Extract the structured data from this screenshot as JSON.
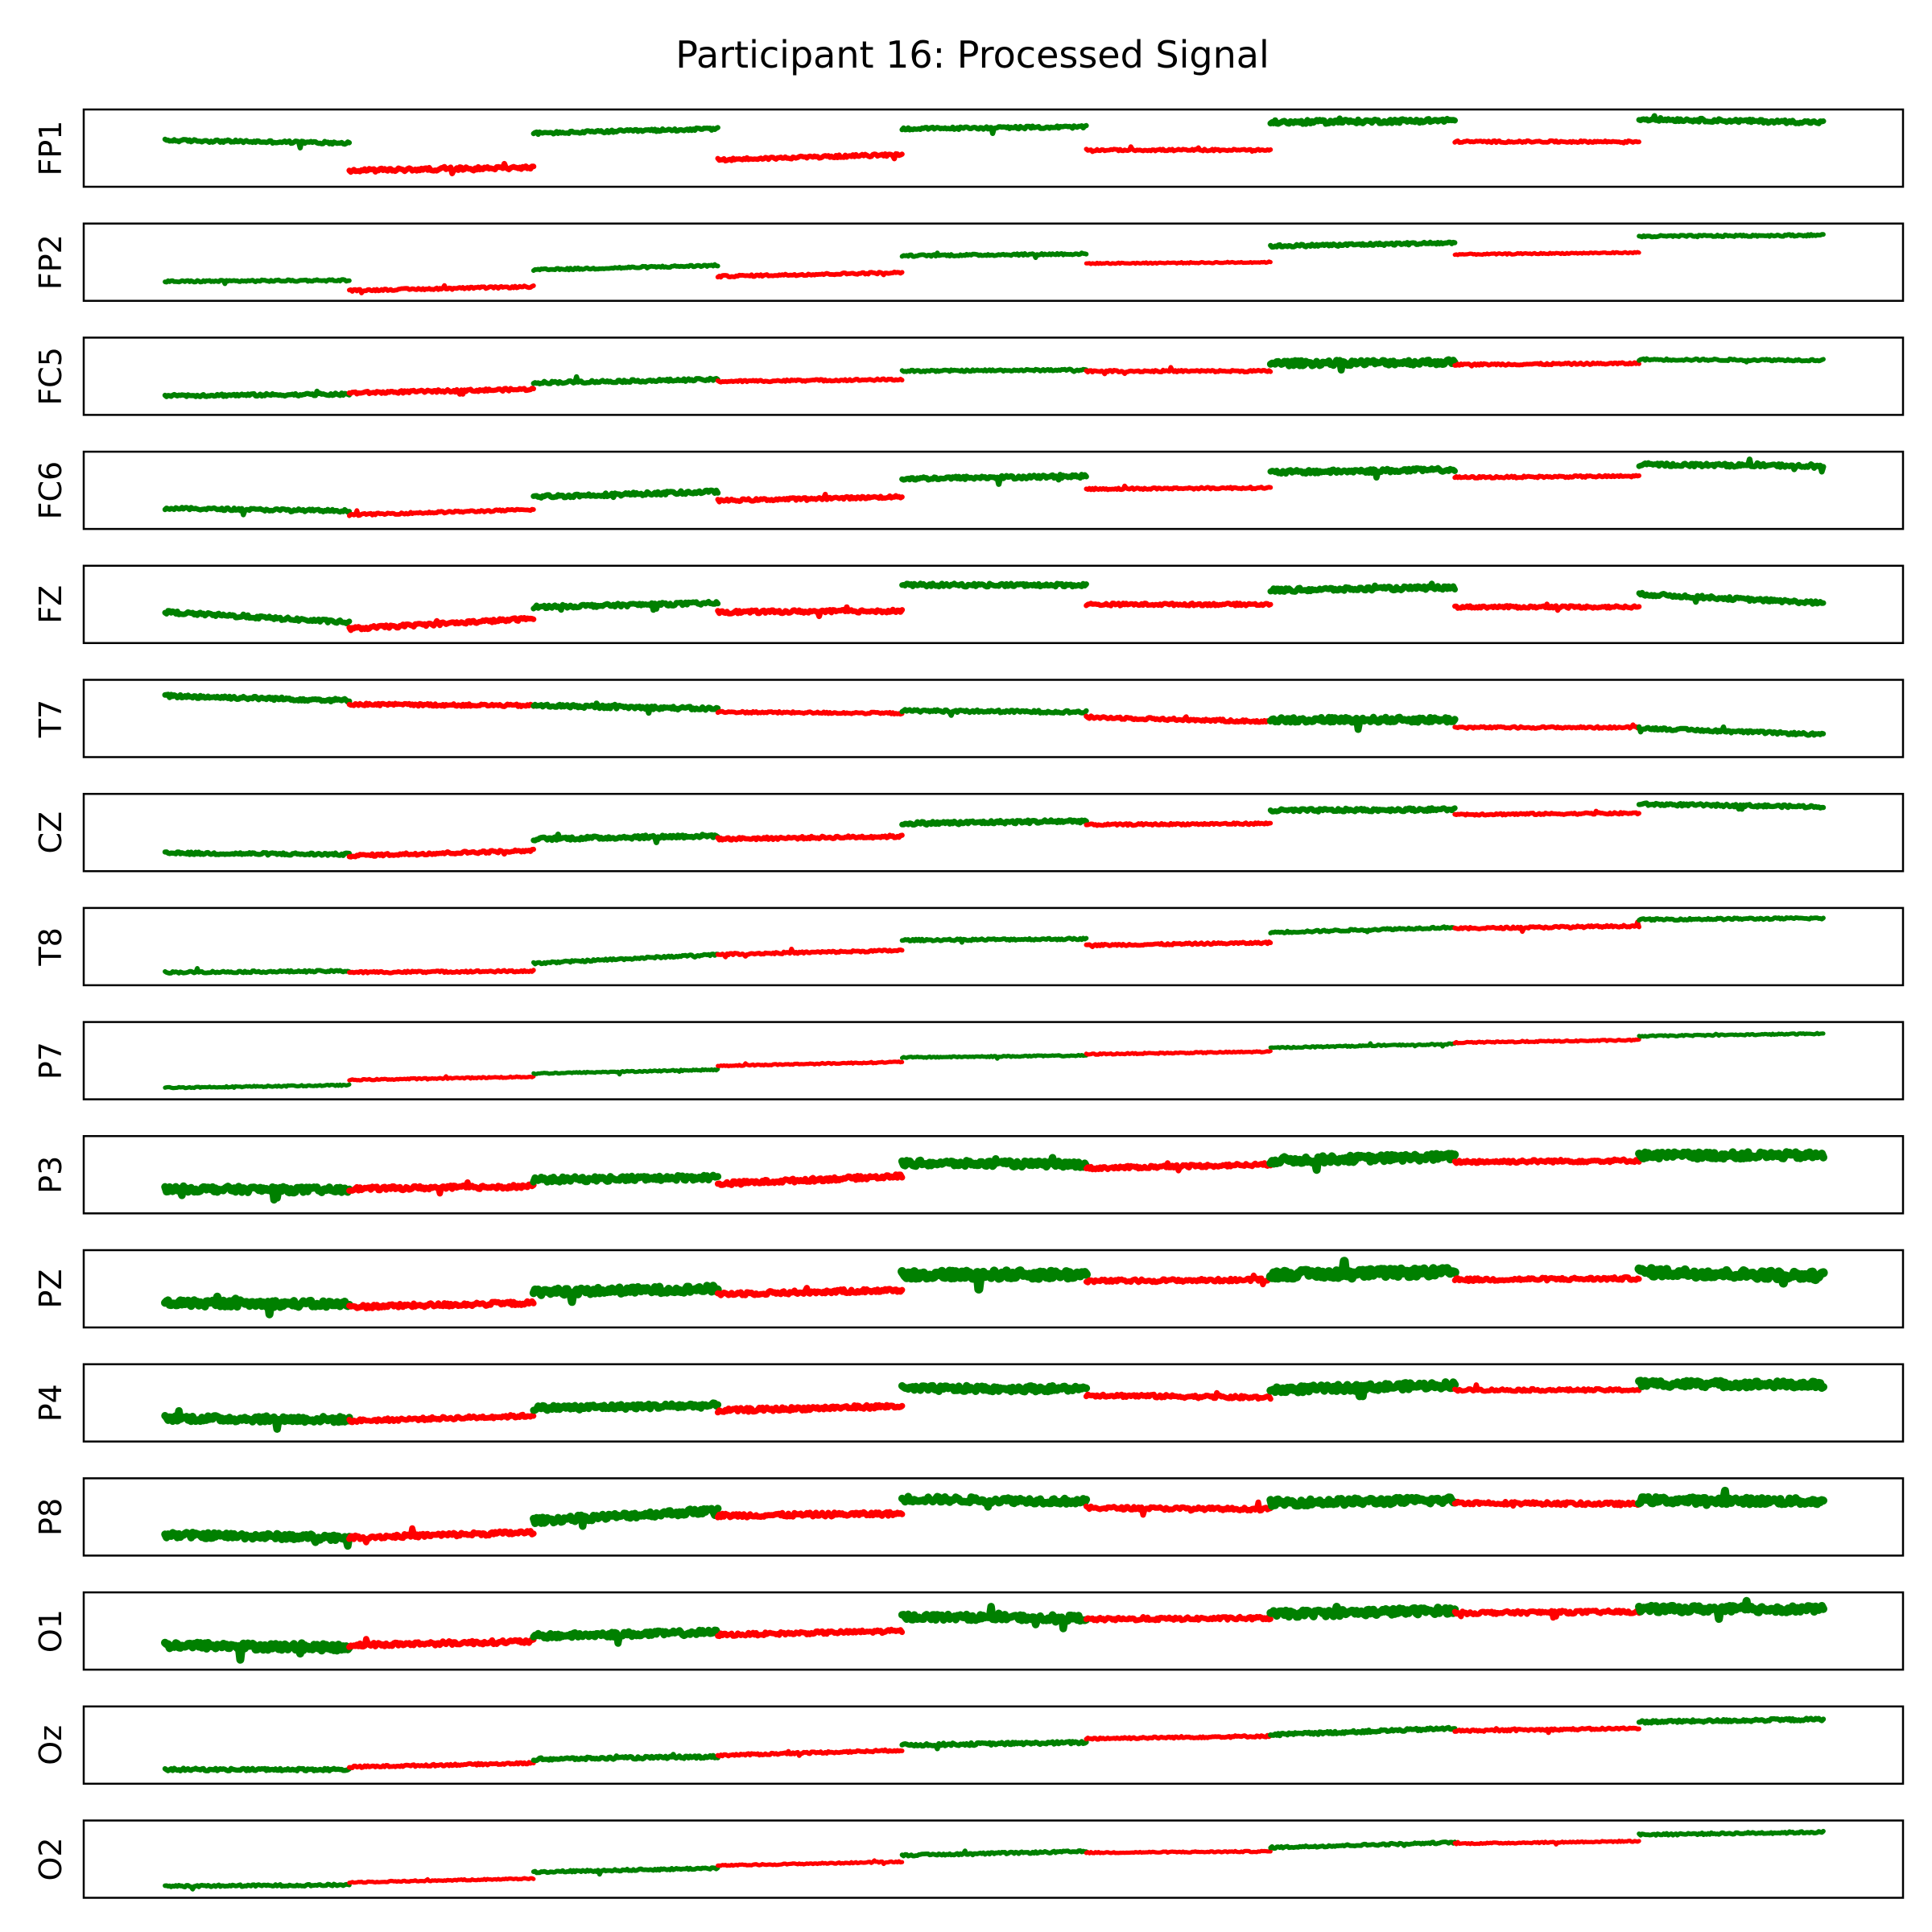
{
  "chart_data": {
    "type": "line",
    "title": "Participant 16: Processed Signal",
    "colors": {
      "high": "#008000",
      "low": "#ff0000"
    },
    "segment_colors": [
      "high",
      "low",
      "high",
      "low",
      "high",
      "low",
      "high",
      "low",
      "high"
    ],
    "grid": false,
    "x_ticks_visible": false,
    "y_ticks_visible": false,
    "channels": [
      {
        "label": "FP1",
        "levels": [
          [
            0.62,
            0.58
          ],
          [
            0.15,
            0.2
          ],
          [
            0.73,
            0.8
          ],
          [
            0.32,
            0.4
          ],
          [
            0.8,
            0.83
          ],
          [
            0.47,
            0.47
          ],
          [
            0.9,
            0.93
          ],
          [
            0.6,
            0.6
          ],
          [
            0.95,
            0.9
          ]
        ],
        "noise": [
          0.04,
          0.05,
          0.04,
          0.04,
          0.04,
          0.03,
          0.06,
          0.03,
          0.05
        ]
      },
      {
        "label": "FP2",
        "levels": [
          [
            0.2,
            0.22
          ],
          [
            0.06,
            0.12
          ],
          [
            0.38,
            0.45
          ],
          [
            0.28,
            0.34
          ],
          [
            0.6,
            0.63
          ],
          [
            0.48,
            0.5
          ],
          [
            0.75,
            0.8
          ],
          [
            0.62,
            0.65
          ],
          [
            0.9,
            0.92
          ]
        ],
        "noise": [
          0.03,
          0.03,
          0.03,
          0.03,
          0.03,
          0.02,
          0.04,
          0.02,
          0.03
        ]
      },
      {
        "label": "FC5",
        "levels": [
          [
            0.2,
            0.22
          ],
          [
            0.24,
            0.3
          ],
          [
            0.4,
            0.45
          ],
          [
            0.42,
            0.45
          ],
          [
            0.58,
            0.6
          ],
          [
            0.58,
            0.58
          ],
          [
            0.7,
            0.72
          ],
          [
            0.68,
            0.7
          ],
          [
            0.76,
            0.75
          ]
        ],
        "noise": [
          0.04,
          0.04,
          0.04,
          0.03,
          0.03,
          0.03,
          0.08,
          0.03,
          0.03
        ]
      },
      {
        "label": "FC6",
        "levels": [
          [
            0.22,
            0.18
          ],
          [
            0.12,
            0.2
          ],
          [
            0.4,
            0.48
          ],
          [
            0.34,
            0.4
          ],
          [
            0.68,
            0.72
          ],
          [
            0.52,
            0.54
          ],
          [
            0.78,
            0.82
          ],
          [
            0.7,
            0.72
          ],
          [
            0.9,
            0.88
          ]
        ],
        "noise": [
          0.04,
          0.03,
          0.05,
          0.04,
          0.05,
          0.03,
          0.06,
          0.03,
          0.05
        ]
      },
      {
        "label": "FZ",
        "levels": [
          [
            0.38,
            0.22
          ],
          [
            0.12,
            0.28
          ],
          [
            0.46,
            0.52
          ],
          [
            0.38,
            0.4
          ],
          [
            0.8,
            0.8
          ],
          [
            0.5,
            0.5
          ],
          [
            0.72,
            0.76
          ],
          [
            0.46,
            0.46
          ],
          [
            0.66,
            0.52
          ]
        ],
        "noise": [
          0.05,
          0.05,
          0.05,
          0.05,
          0.05,
          0.04,
          0.06,
          0.04,
          0.05
        ]
      },
      {
        "label": "T7",
        "levels": [
          [
            0.85,
            0.78
          ],
          [
            0.72,
            0.7
          ],
          [
            0.7,
            0.65
          ],
          [
            0.6,
            0.58
          ],
          [
            0.62,
            0.6
          ],
          [
            0.52,
            0.45
          ],
          [
            0.48,
            0.48
          ],
          [
            0.36,
            0.36
          ],
          [
            0.35,
            0.25
          ]
        ],
        "noise": [
          0.05,
          0.04,
          0.05,
          0.03,
          0.04,
          0.04,
          0.08,
          0.03,
          0.04
        ]
      },
      {
        "label": "CZ",
        "levels": [
          [
            0.18,
            0.16
          ],
          [
            0.14,
            0.22
          ],
          [
            0.4,
            0.45
          ],
          [
            0.4,
            0.44
          ],
          [
            0.64,
            0.68
          ],
          [
            0.62,
            0.64
          ],
          [
            0.84,
            0.86
          ],
          [
            0.78,
            0.8
          ],
          [
            0.94,
            0.9
          ]
        ],
        "noise": [
          0.04,
          0.04,
          0.05,
          0.04,
          0.05,
          0.03,
          0.05,
          0.03,
          0.04
        ]
      },
      {
        "label": "T8",
        "levels": [
          [
            0.1,
            0.12
          ],
          [
            0.1,
            0.12
          ],
          [
            0.24,
            0.38
          ],
          [
            0.38,
            0.44
          ],
          [
            0.6,
            0.62
          ],
          [
            0.52,
            0.56
          ],
          [
            0.72,
            0.8
          ],
          [
            0.78,
            0.82
          ],
          [
            0.92,
            0.94
          ]
        ],
        "noise": [
          0.03,
          0.03,
          0.03,
          0.03,
          0.03,
          0.03,
          0.03,
          0.03,
          0.03
        ]
      },
      {
        "label": "P7",
        "levels": [
          [
            0.08,
            0.12
          ],
          [
            0.2,
            0.25
          ],
          [
            0.3,
            0.36
          ],
          [
            0.42,
            0.48
          ],
          [
            0.55,
            0.58
          ],
          [
            0.6,
            0.64
          ],
          [
            0.7,
            0.76
          ],
          [
            0.78,
            0.82
          ],
          [
            0.88,
            0.92
          ]
        ],
        "noise": [
          0.02,
          0.02,
          0.02,
          0.02,
          0.02,
          0.02,
          0.02,
          0.02,
          0.02
        ]
      },
      {
        "label": "P3",
        "levels": [
          [
            0.28,
            0.26
          ],
          [
            0.28,
            0.32
          ],
          [
            0.42,
            0.46
          ],
          [
            0.36,
            0.48
          ],
          [
            0.68,
            0.66
          ],
          [
            0.6,
            0.66
          ],
          [
            0.72,
            0.78
          ],
          [
            0.7,
            0.72
          ],
          [
            0.8,
            0.8
          ]
        ],
        "noise": [
          0.09,
          0.06,
          0.08,
          0.06,
          0.09,
          0.05,
          0.1,
          0.05,
          0.1
        ]
      },
      {
        "label": "PZ",
        "levels": [
          [
            0.28,
            0.26
          ],
          [
            0.22,
            0.28
          ],
          [
            0.45,
            0.5
          ],
          [
            0.42,
            0.48
          ],
          [
            0.72,
            0.72
          ],
          [
            0.62,
            0.64
          ],
          [
            0.72,
            0.76
          ],
          [
            0.64,
            0.66
          ],
          [
            0.76,
            0.7
          ]
        ],
        "noise": [
          0.1,
          0.06,
          0.1,
          0.06,
          0.12,
          0.05,
          0.12,
          0.05,
          0.12
        ]
      },
      {
        "label": "P4",
        "levels": [
          [
            0.26,
            0.24
          ],
          [
            0.22,
            0.3
          ],
          [
            0.42,
            0.46
          ],
          [
            0.38,
            0.45
          ],
          [
            0.72,
            0.72
          ],
          [
            0.62,
            0.58
          ],
          [
            0.7,
            0.78
          ],
          [
            0.7,
            0.7
          ],
          [
            0.8,
            0.78
          ]
        ],
        "noise": [
          0.09,
          0.05,
          0.08,
          0.06,
          0.09,
          0.05,
          0.1,
          0.04,
          0.1
        ]
      },
      {
        "label": "P8",
        "levels": [
          [
            0.22,
            0.18
          ],
          [
            0.18,
            0.26
          ],
          [
            0.44,
            0.6
          ],
          [
            0.52,
            0.55
          ],
          [
            0.78,
            0.74
          ],
          [
            0.64,
            0.62
          ],
          [
            0.72,
            0.76
          ],
          [
            0.72,
            0.7
          ],
          [
            0.76,
            0.74
          ]
        ],
        "noise": [
          0.09,
          0.06,
          0.09,
          0.06,
          0.09,
          0.05,
          0.1,
          0.05,
          0.1
        ]
      },
      {
        "label": "O1",
        "levels": [
          [
            0.28,
            0.24
          ],
          [
            0.28,
            0.34
          ],
          [
            0.42,
            0.48
          ],
          [
            0.44,
            0.5
          ],
          [
            0.72,
            0.7
          ],
          [
            0.68,
            0.7
          ],
          [
            0.76,
            0.82
          ],
          [
            0.78,
            0.8
          ],
          [
            0.84,
            0.84
          ]
        ],
        "noise": [
          0.1,
          0.06,
          0.08,
          0.05,
          0.09,
          0.05,
          0.1,
          0.05,
          0.1
        ]
      },
      {
        "label": "Oz",
        "levels": [
          [
            0.12,
            0.12
          ],
          [
            0.16,
            0.22
          ],
          [
            0.28,
            0.32
          ],
          [
            0.34,
            0.42
          ],
          [
            0.5,
            0.54
          ],
          [
            0.6,
            0.64
          ],
          [
            0.66,
            0.76
          ],
          [
            0.72,
            0.76
          ],
          [
            0.86,
            0.9
          ]
        ],
        "noise": [
          0.04,
          0.03,
          0.04,
          0.03,
          0.04,
          0.03,
          0.04,
          0.03,
          0.04
        ]
      },
      {
        "label": "O2",
        "levels": [
          [
            0.08,
            0.1
          ],
          [
            0.14,
            0.2
          ],
          [
            0.3,
            0.36
          ],
          [
            0.4,
            0.46
          ],
          [
            0.56,
            0.62
          ],
          [
            0.6,
            0.62
          ],
          [
            0.68,
            0.76
          ],
          [
            0.74,
            0.78
          ],
          [
            0.88,
            0.92
          ]
        ],
        "noise": [
          0.03,
          0.02,
          0.03,
          0.02,
          0.03,
          0.02,
          0.03,
          0.02,
          0.03
        ]
      }
    ]
  }
}
